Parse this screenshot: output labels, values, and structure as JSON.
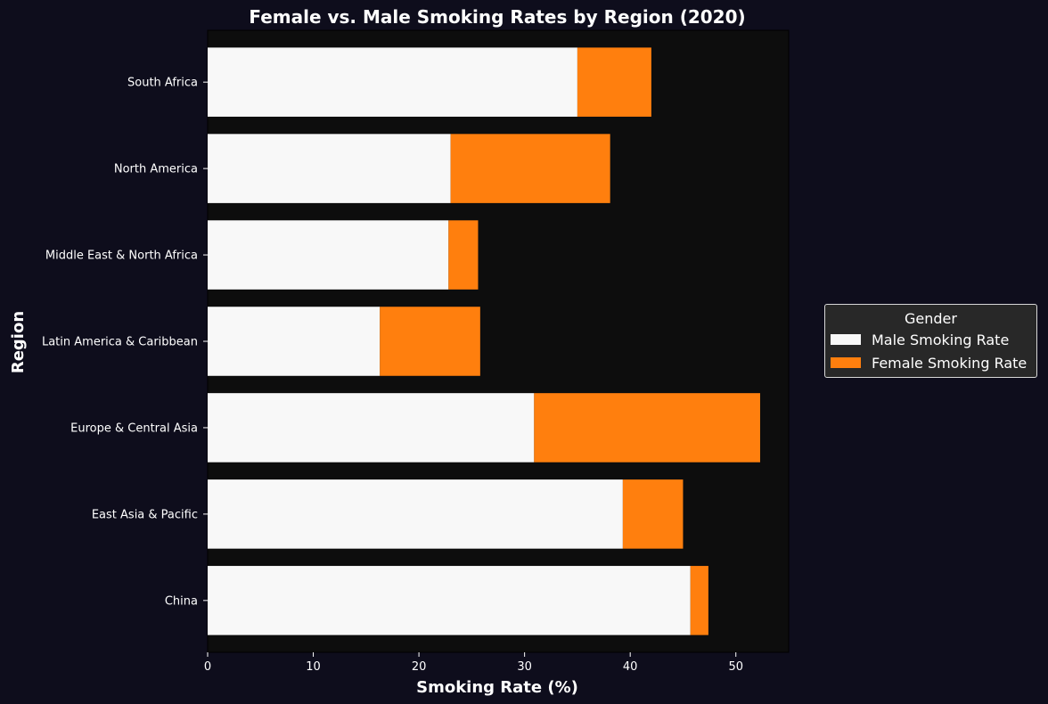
{
  "chart_data": {
    "type": "bar",
    "orientation": "horizontal",
    "stacked": true,
    "title": "Female vs. Male Smoking Rates by Region (2020)",
    "xlabel": "Smoking Rate (%)",
    "ylabel": "Region",
    "categories": [
      "China",
      "East Asia & Pacific",
      "Europe & Central Asia",
      "Latin America & Caribbean",
      "Middle East & North Africa",
      "North America",
      "South Africa"
    ],
    "series": [
      {
        "name": "Male Smoking Rate",
        "color": "#f8f8f8",
        "values": [
          45.7,
          39.3,
          30.9,
          16.3,
          22.8,
          23.0,
          35.0
        ]
      },
      {
        "name": "Female Smoking Rate",
        "color": "#ff7f0e",
        "values": [
          1.7,
          5.7,
          21.4,
          9.5,
          2.8,
          15.1,
          7.0
        ]
      }
    ],
    "xlim": [
      0,
      55
    ],
    "xticks": [
      0,
      10,
      20,
      30,
      40,
      50
    ],
    "grid": false,
    "legend": {
      "title": "Gender",
      "placement": "right"
    },
    "colors": {
      "background": "#0e0d1c",
      "plot_background": "#0d0d0d",
      "text": "#ffffff"
    }
  }
}
